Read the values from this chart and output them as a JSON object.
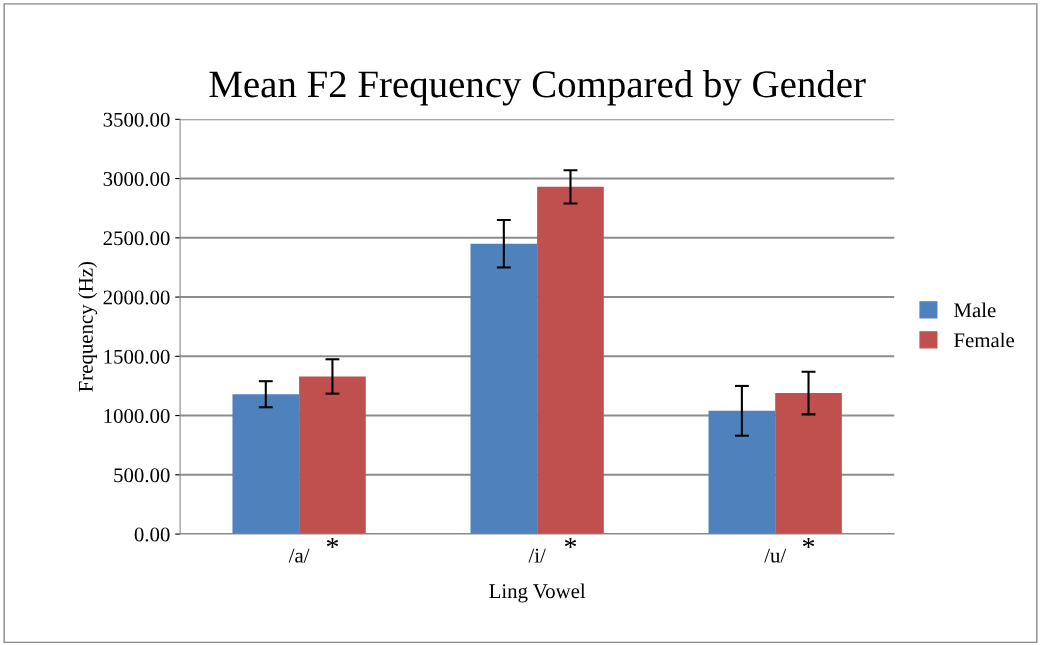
{
  "chart_data": {
    "type": "bar",
    "title": "Mean F2 Frequency Compared by Gender",
    "xlabel": "Ling Vowel",
    "ylabel": "Frequency (Hz)",
    "categories": [
      "/a/",
      "/i/",
      "/u/"
    ],
    "series": [
      {
        "name": "Male",
        "color": "#4f81bd",
        "values": [
          1180,
          2450,
          1040
        ],
        "errors": [
          110,
          200,
          210
        ]
      },
      {
        "name": "Female",
        "color": "#c0504d",
        "values": [
          1330,
          2930,
          1190
        ],
        "errors": [
          145,
          140,
          180
        ]
      }
    ],
    "ylim": [
      0,
      3500
    ],
    "yticks": [
      {
        "value": 0,
        "label": "0.00"
      },
      {
        "value": 500,
        "label": "500.00"
      },
      {
        "value": 1000,
        "label": "1000.00"
      },
      {
        "value": 1500,
        "label": "1500.00"
      },
      {
        "value": 2000,
        "label": "2000.00"
      },
      {
        "value": 2500,
        "label": "2500.00"
      },
      {
        "value": 3000,
        "label": "3000.00"
      },
      {
        "value": 3500,
        "label": "3500.00"
      }
    ],
    "annotations": [
      {
        "text": "*",
        "x": "/a/",
        "y": 0
      },
      {
        "text": "*",
        "x": "/i/",
        "y": 0
      },
      {
        "text": "*",
        "x": "/u/",
        "y": 0
      }
    ],
    "grid": "y",
    "legend": "right"
  }
}
